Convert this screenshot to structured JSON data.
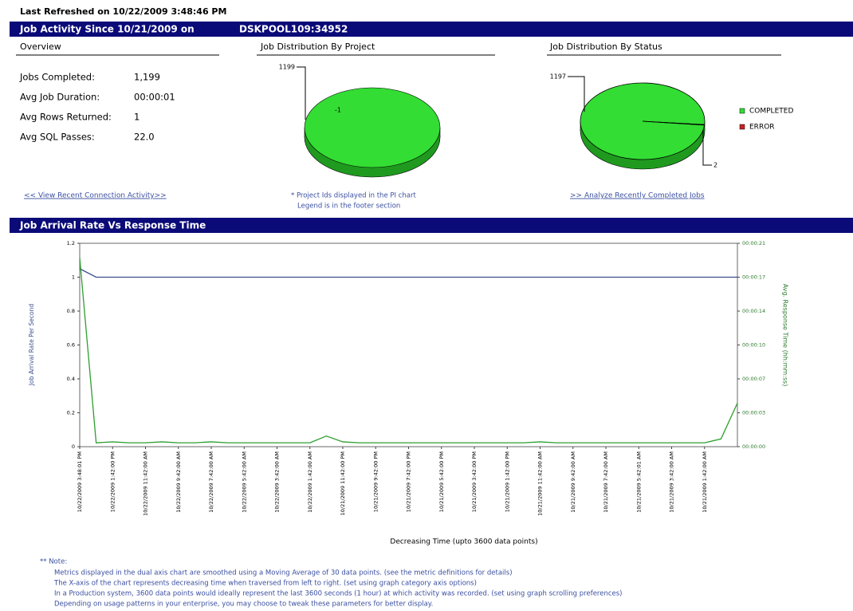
{
  "header": {
    "refreshed": "Last Refreshed on  10/22/2009 3:48:46 PM",
    "activity_title": "Job Activity Since 10/21/2009 on",
    "host": "DSKPOOL109:34952"
  },
  "overview": {
    "title": "Overview",
    "rows": [
      [
        "Jobs Completed:",
        "1,199"
      ],
      [
        "Avg Job Duration:",
        "00:00:01"
      ],
      [
        "Avg Rows Returned:",
        "1"
      ],
      [
        "Avg SQL Passes:",
        "22.0"
      ]
    ]
  },
  "links": {
    "connections": "<< View Recent Connection Activity>>",
    "project_note": [
      "* Project Ids displayed in the PI chart",
      "Legend is in the footer section"
    ],
    "completed": ">> Analyze Recently Completed Jobs"
  },
  "chart_data": [
    {
      "type": "pie",
      "title": "Job Distribution By Project",
      "categories": [
        "-1"
      ],
      "values": [
        1199
      ],
      "colors": [
        "#33dd33"
      ]
    },
    {
      "type": "pie",
      "title": "Job Distribution By Status",
      "categories": [
        "COMPLETED",
        "ERROR"
      ],
      "values": [
        1197,
        2
      ],
      "colors": [
        "#33dd33",
        "#cc2222"
      ],
      "legend": "right"
    },
    {
      "type": "line",
      "title": "Job Arrival Rate Vs Response Time",
      "ylabel": "Job Arrival Rate Per Second",
      "y2label": "Avg. Response Time (hh:mm:ss)",
      "xlabel": "Decreasing Time (upto 3600 data points)",
      "categories": [
        "10/22/2009 3:48:01 PM",
        null,
        "10/22/2009 1:42:00 PM",
        null,
        "10/22/2009 11:42:00 AM",
        null,
        "10/22/2009 9:42:00 AM",
        null,
        "10/22/2009 7:42:00 AM",
        null,
        "10/22/2009 5:42:00 AM",
        null,
        "10/22/2009 3:42:00 AM",
        null,
        "10/22/2009 1:42:00 AM",
        null,
        "10/21/2009 11:42:00 PM",
        null,
        "10/21/2009 9:42:00 PM",
        null,
        "10/21/2009 7:42:00 PM",
        null,
        "10/21/2009 5:42:00 PM",
        null,
        "10/21/2009 3:42:00 PM",
        null,
        "10/21/2009 1:42:00 PM",
        null,
        "10/21/2009 11:42:00 AM",
        null,
        "10/21/2009 9:42:00 AM",
        null,
        "10/21/2009 7:42:00 AM",
        null,
        "10/21/2009 5:42:01 AM",
        null,
        "10/21/2009 3:42:00 AM",
        null,
        "10/21/2009 1:42:00 AM",
        null,
        null
      ],
      "ylim": [
        0,
        1.2
      ],
      "yticks": [
        0,
        0.2,
        0.4,
        0.6,
        0.8,
        1,
        1.2
      ],
      "y2lim": [
        0,
        21
      ],
      "y2ticks": [
        {
          "value": 0,
          "label": "00:00:00"
        },
        {
          "value": 3.5,
          "label": "00:00:03"
        },
        {
          "value": 7,
          "label": "00:00:07"
        },
        {
          "value": 10.5,
          "label": "00:00:10"
        },
        {
          "value": 14,
          "label": "00:00:14"
        },
        {
          "value": 17.5,
          "label": "00:00:17"
        },
        {
          "value": 21,
          "label": "00:00:21"
        }
      ],
      "series": [
        {
          "color": "#3a4f8f",
          "values": [
            1.05,
            1,
            1,
            1,
            1,
            1,
            1,
            1,
            1,
            1,
            1,
            1,
            1,
            1,
            1,
            1,
            1,
            1,
            1,
            1,
            1,
            1,
            1,
            1,
            1,
            1,
            1,
            1,
            1,
            1,
            1,
            1,
            1,
            1,
            1,
            1,
            1,
            1,
            1,
            1,
            1
          ]
        },
        {
          "color": "#2e9e2e",
          "axis": "y2",
          "values": [
            19.5,
            0.4,
            0.5,
            0.4,
            0.4,
            0.5,
            0.4,
            0.4,
            0.5,
            0.4,
            0.4,
            0.4,
            0.4,
            0.4,
            0.4,
            1.1,
            0.5,
            0.4,
            0.4,
            0.4,
            0.4,
            0.4,
            0.4,
            0.4,
            0.4,
            0.4,
            0.4,
            0.4,
            0.5,
            0.4,
            0.4,
            0.4,
            0.4,
            0.4,
            0.4,
            0.4,
            0.4,
            0.4,
            0.4,
            0.8,
            4.5
          ]
        }
      ]
    }
  ],
  "note": {
    "title": "** Note:",
    "lines": [
      "Metrics displayed in the dual axis chart are smoothed using a Moving Average of 30 data points. (see the metric definitions for details)",
      "The X-axis of the chart represents decreasing time when traversed from left to right. (set using graph category axis options)",
      "In a Production system, 3600 data points would ideally represent the last 3600 seconds (1 hour) at which activity was recorded. (set using graph scrolling preferences)",
      "Depending on usage patterns in your enterprise, you may choose to tweak these parameters for better display."
    ]
  }
}
